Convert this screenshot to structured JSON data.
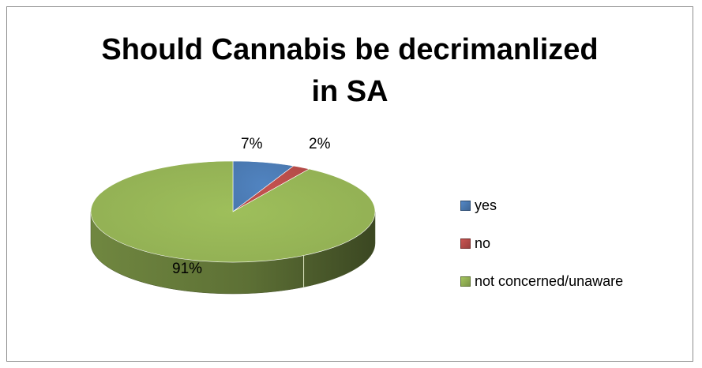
{
  "chart_data": {
    "type": "pie",
    "title_lines": [
      "Should Cannabis be decrimanlized",
      "in SA"
    ],
    "slices": [
      {
        "label": "yes",
        "value": 7,
        "display": "7%",
        "color": "#4f81bd"
      },
      {
        "label": "no",
        "value": 2,
        "display": "2%",
        "color": "#c0504d"
      },
      {
        "label": "not concerned/unaware",
        "value": 91,
        "display": "91%",
        "color": "#9bbb59"
      }
    ],
    "legend_position": "right"
  }
}
